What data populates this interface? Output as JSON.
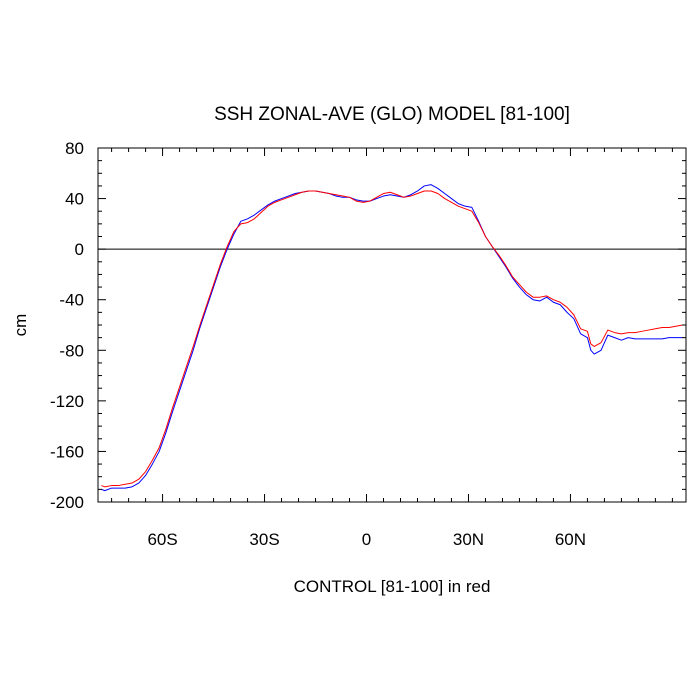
{
  "chart_data": {
    "type": "line",
    "title": "SSH ZONAL-AVE (GLO) MODEL [81-100]",
    "xlabel": "CONTROL [81-100] in red",
    "ylabel": "cm",
    "xlim": [
      -79,
      94
    ],
    "ylim": [
      -200,
      80
    ],
    "x_ticks": [
      {
        "value": -60,
        "label": "60S"
      },
      {
        "value": -30,
        "label": "30S"
      },
      {
        "value": 0,
        "label": "0"
      },
      {
        "value": 30,
        "label": "30N"
      },
      {
        "value": 60,
        "label": "60N"
      }
    ],
    "y_ticks": [
      {
        "value": 80,
        "label": "80"
      },
      {
        "value": 40,
        "label": "40"
      },
      {
        "value": 0,
        "label": "0"
      },
      {
        "value": -40,
        "label": "-40"
      },
      {
        "value": -80,
        "label": "-80"
      },
      {
        "value": -120,
        "label": "-120"
      },
      {
        "value": -160,
        "label": "-160"
      },
      {
        "value": -200,
        "label": "-200"
      }
    ],
    "zero_line": true,
    "series": [
      {
        "color": "#0000ff",
        "x": [
          -78,
          -77,
          -75,
          -73,
          -71,
          -69,
          -67,
          -65,
          -63,
          -61,
          -59,
          -57,
          -55,
          -53,
          -51,
          -49,
          -47,
          -45,
          -43,
          -41,
          -39,
          -37,
          -35,
          -33,
          -31,
          -29,
          -27,
          -25,
          -23,
          -21,
          -19,
          -17,
          -15,
          -13,
          -11,
          -9,
          -7,
          -5,
          -3,
          -1,
          1,
          3,
          5,
          7,
          9,
          11,
          13,
          15,
          17,
          19,
          21,
          23,
          25,
          27,
          29,
          31,
          33,
          35,
          37,
          39,
          41,
          43,
          45,
          47,
          49,
          51,
          53,
          55,
          57,
          59,
          61,
          63,
          65,
          66,
          67,
          69,
          71,
          73,
          75,
          77,
          79,
          81,
          83,
          85,
          87,
          89,
          91,
          93
        ],
        "y": [
          -190,
          -191,
          -189,
          -189,
          -189,
          -188,
          -185,
          -179,
          -170,
          -160,
          -145,
          -128,
          -112,
          -96,
          -80,
          -62,
          -46,
          -30,
          -14,
          0,
          12,
          22,
          24,
          27,
          31,
          35,
          38,
          40,
          42,
          44,
          45,
          46,
          46,
          45,
          44,
          42,
          41,
          41,
          39,
          38,
          38,
          40,
          42,
          43,
          42,
          41,
          43,
          46,
          50,
          51,
          48,
          44,
          40,
          36,
          34,
          33,
          22,
          10,
          2,
          -6,
          -14,
          -23,
          -30,
          -36,
          -40,
          -41,
          -38,
          -42,
          -44,
          -50,
          -55,
          -67,
          -70,
          -80,
          -83,
          -80,
          -68,
          -70,
          -72,
          -70,
          -71,
          -71,
          -71,
          -71,
          -71,
          -70,
          -70,
          -70
        ]
      },
      {
        "color": "#ff0000",
        "x": [
          -78,
          -77,
          -75,
          -73,
          -71,
          -69,
          -67,
          -65,
          -63,
          -61,
          -59,
          -57,
          -55,
          -53,
          -51,
          -49,
          -47,
          -45,
          -43,
          -41,
          -39,
          -37,
          -35,
          -33,
          -31,
          -29,
          -27,
          -25,
          -23,
          -21,
          -19,
          -17,
          -15,
          -13,
          -11,
          -9,
          -7,
          -5,
          -3,
          -1,
          1,
          3,
          5,
          7,
          9,
          11,
          13,
          15,
          17,
          19,
          21,
          23,
          25,
          27,
          29,
          31,
          33,
          35,
          37,
          39,
          41,
          43,
          45,
          47,
          49,
          51,
          53,
          55,
          57,
          59,
          61,
          63,
          65,
          66,
          67,
          69,
          71,
          73,
          75,
          77,
          79,
          81,
          83,
          85,
          87,
          89,
          91,
          93
        ],
        "y": [
          -187,
          -188,
          -187,
          -187,
          -186,
          -185,
          -182,
          -176,
          -167,
          -157,
          -142,
          -125,
          -109,
          -93,
          -77,
          -60,
          -44,
          -28,
          -12,
          2,
          14,
          20,
          21,
          24,
          29,
          34,
          37,
          39,
          41,
          43,
          45,
          46,
          46,
          45,
          44,
          43,
          42,
          41,
          38,
          37,
          38,
          41,
          44,
          45,
          43,
          41,
          42,
          44,
          46,
          46,
          44,
          40,
          37,
          34,
          32,
          30,
          21,
          10,
          2,
          -5,
          -13,
          -22,
          -28,
          -34,
          -38,
          -38,
          -37,
          -40,
          -42,
          -46,
          -52,
          -63,
          -65,
          -75,
          -77,
          -74,
          -64,
          -66,
          -67,
          -66,
          -66,
          -65,
          -64,
          -63,
          -62,
          -62,
          -61,
          -60
        ]
      }
    ]
  }
}
